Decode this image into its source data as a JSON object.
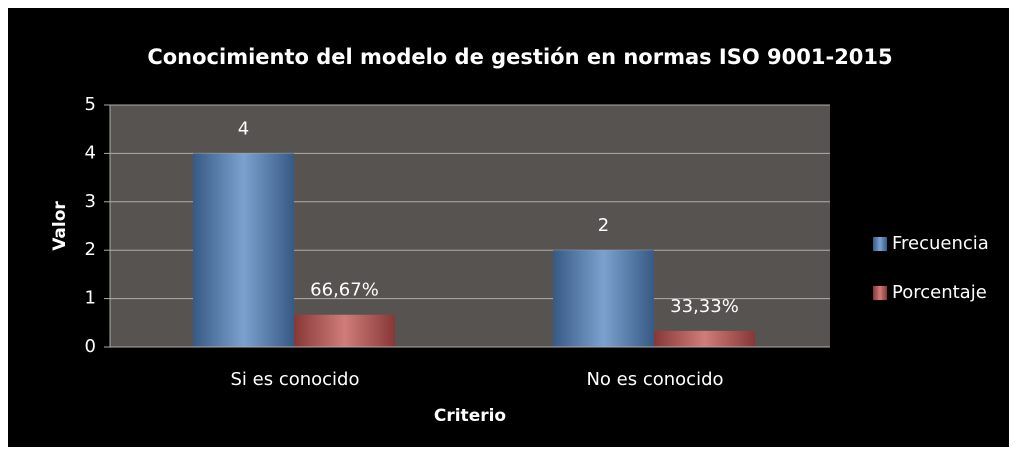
{
  "chart_data": {
    "type": "bar",
    "title": "Conocimiento del modelo de gestión en normas ISO 9001-2015",
    "x_label": "Criterio",
    "y_label": "Valor",
    "categories": [
      "Si es conocido",
      "No es conocido"
    ],
    "series": [
      {
        "name": "Frecuencia",
        "color": "#4f81bd",
        "values": [
          4,
          2
        ]
      },
      {
        "name": "Porcentaje",
        "color": "#c0504d",
        "values": [
          0.6667,
          0.3333
        ],
        "value_labels": [
          "66,67%",
          "33,33%"
        ]
      }
    ],
    "ylim": [
      0,
      5
    ],
    "yticks": [
      0,
      1,
      2,
      3,
      4,
      5
    ],
    "grid": true,
    "legend": "right"
  }
}
